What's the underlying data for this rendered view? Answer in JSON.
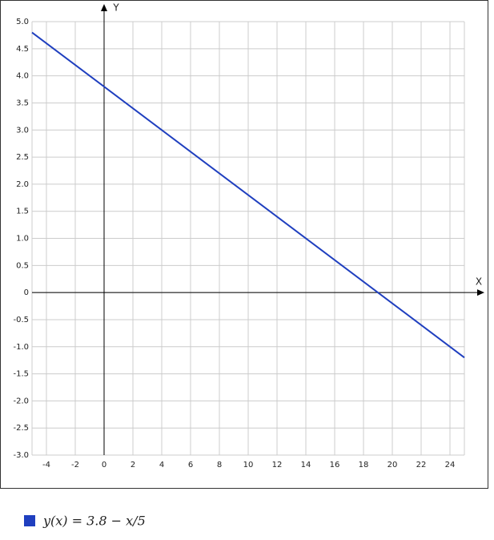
{
  "chart_data": {
    "type": "line",
    "x": [
      -5,
      25
    ],
    "series": [
      {
        "name": "y(x) = 3.8 − x/5",
        "color": "#1f3fbf",
        "values": [
          4.8,
          -1.2
        ]
      }
    ],
    "xlabel": "X",
    "ylabel": "Y",
    "xlim": [
      -5,
      25
    ],
    "ylim": [
      -3,
      5
    ],
    "xticks": [
      -4,
      -2,
      0,
      2,
      4,
      6,
      8,
      10,
      12,
      14,
      16,
      18,
      20,
      22,
      24
    ],
    "yticks": [
      {
        "value": -3,
        "label": "-3.0"
      },
      -2.5,
      {
        "value": -2,
        "label": "-2.0"
      },
      -1.5,
      {
        "value": -1,
        "label": "-1.0"
      },
      -0.5,
      0,
      0.5,
      {
        "value": 1,
        "label": "1.0"
      },
      1.5,
      {
        "value": 2,
        "label": "2.0"
      },
      2.5,
      {
        "value": 3,
        "label": "3.0"
      },
      3.5,
      {
        "value": 4,
        "label": "4.0"
      },
      4.5,
      {
        "value": 5,
        "label": "5.0"
      }
    ],
    "grid": true,
    "legend": "bottom-left"
  }
}
